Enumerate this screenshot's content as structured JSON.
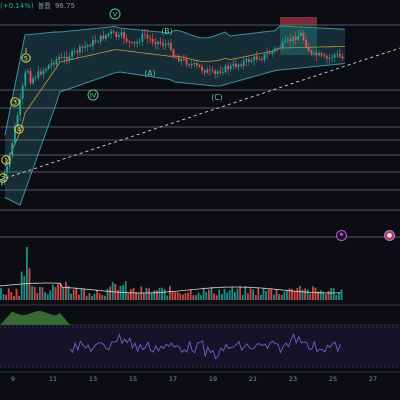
{
  "header": {
    "change_text": "(+0.14%)",
    "volume_label": "볼륨",
    "volume_value": "96.75"
  },
  "colors": {
    "background": "#0b0d13",
    "bull": "#26a69a",
    "bear": "#ef5350",
    "wave_label": "#f2e34a",
    "wave_label_green": "#5fd38d",
    "bollinger_fill": "#1d3a4a",
    "bollinger_line": "#4aa3b5",
    "trendline": "#cfd3dc",
    "hline": "#bfc3cc",
    "rsi_line": "#7b5cc9",
    "oscillator_fill": "#3b6e3b"
  },
  "x_axis": {
    "ticks": [
      "9",
      "11",
      "13",
      "15",
      "17",
      "19",
      "21",
      "23",
      "25",
      "27"
    ]
  },
  "wave_labels": {
    "impulse_yellow": [
      "1",
      "2",
      "3",
      "4",
      "5"
    ],
    "impulse_green": [
      "IV",
      "V"
    ],
    "correction": [
      "(A)",
      "(B)",
      "(C)"
    ]
  },
  "badges": {
    "flag_icon": "flag-icon",
    "pin_icon": "pin-icon"
  }
}
